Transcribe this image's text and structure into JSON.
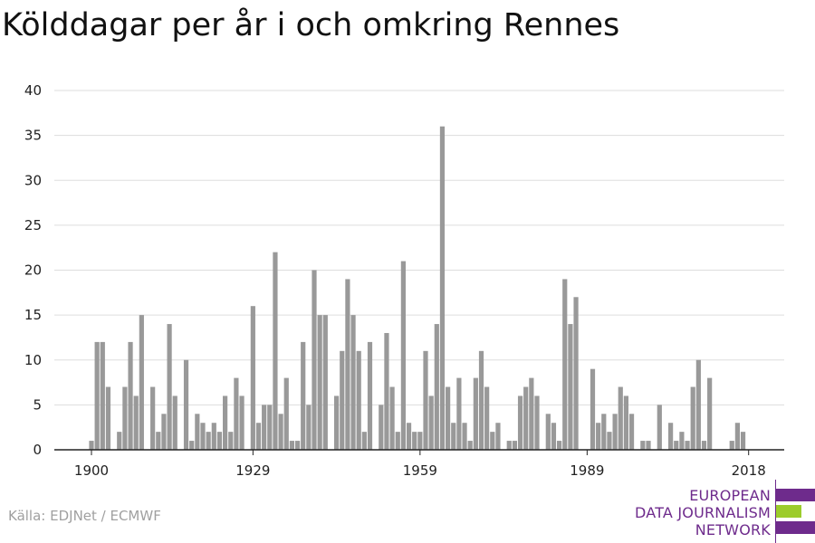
{
  "header": {
    "title": "Kölddagar per år i och omkring Rennes"
  },
  "footer": {
    "source": "Källa: EDJNet / ECMWF"
  },
  "logo": {
    "lines": [
      "EUROPEAN",
      "DATA JOURNALISM",
      "NETWORK"
    ],
    "colors": {
      "purple": "#6e2b8c",
      "green": "#9ccc2c"
    }
  },
  "chart_data": {
    "type": "bar",
    "title": "Kölddagar per år i och omkring Rennes",
    "xlabel": "",
    "ylabel": "",
    "ylim": [
      0,
      40
    ],
    "yticks": [
      0,
      5,
      10,
      15,
      20,
      25,
      30,
      35,
      40
    ],
    "xticks": [
      1900,
      1929,
      1959,
      1989,
      2018
    ],
    "grid": true,
    "bar_color": "#999999",
    "x": [
      1900,
      1901,
      1902,
      1903,
      1904,
      1905,
      1906,
      1907,
      1908,
      1909,
      1910,
      1911,
      1912,
      1913,
      1914,
      1915,
      1916,
      1917,
      1918,
      1919,
      1920,
      1921,
      1922,
      1923,
      1924,
      1925,
      1926,
      1927,
      1928,
      1929,
      1930,
      1931,
      1932,
      1933,
      1934,
      1935,
      1936,
      1937,
      1938,
      1939,
      1940,
      1941,
      1942,
      1943,
      1944,
      1945,
      1946,
      1947,
      1948,
      1949,
      1950,
      1951,
      1952,
      1953,
      1954,
      1955,
      1956,
      1957,
      1958,
      1959,
      1960,
      1961,
      1962,
      1963,
      1964,
      1965,
      1966,
      1967,
      1968,
      1969,
      1970,
      1971,
      1972,
      1973,
      1974,
      1975,
      1976,
      1977,
      1978,
      1979,
      1980,
      1981,
      1982,
      1983,
      1984,
      1985,
      1986,
      1987,
      1988,
      1989,
      1990,
      1991,
      1992,
      1993,
      1994,
      1995,
      1996,
      1997,
      1998,
      1999,
      2000,
      2001,
      2002,
      2003,
      2004,
      2005,
      2006,
      2007,
      2008,
      2009,
      2010,
      2011,
      2012,
      2013,
      2014,
      2015,
      2016,
      2017,
      2018
    ],
    "values": [
      1,
      12,
      12,
      7,
      0,
      2,
      7,
      12,
      6,
      15,
      0,
      7,
      2,
      4,
      14,
      6,
      0,
      10,
      1,
      4,
      3,
      2,
      3,
      2,
      6,
      2,
      8,
      6,
      0,
      16,
      3,
      5,
      5,
      22,
      4,
      8,
      1,
      1,
      12,
      5,
      20,
      15,
      15,
      0,
      6,
      11,
      19,
      15,
      11,
      2,
      12,
      0,
      5,
      13,
      7,
      2,
      21,
      3,
      2,
      2,
      11,
      6,
      14,
      36,
      7,
      3,
      8,
      3,
      1,
      8,
      11,
      7,
      2,
      3,
      0,
      1,
      1,
      6,
      7,
      8,
      6,
      0,
      4,
      3,
      1,
      19,
      14,
      17,
      0,
      0,
      9,
      3,
      4,
      2,
      4,
      7,
      6,
      4,
      0,
      1,
      1,
      0,
      5,
      0,
      3,
      1,
      2,
      1,
      7,
      10,
      1,
      8,
      0,
      0,
      0,
      1,
      3,
      2,
      0
    ]
  }
}
